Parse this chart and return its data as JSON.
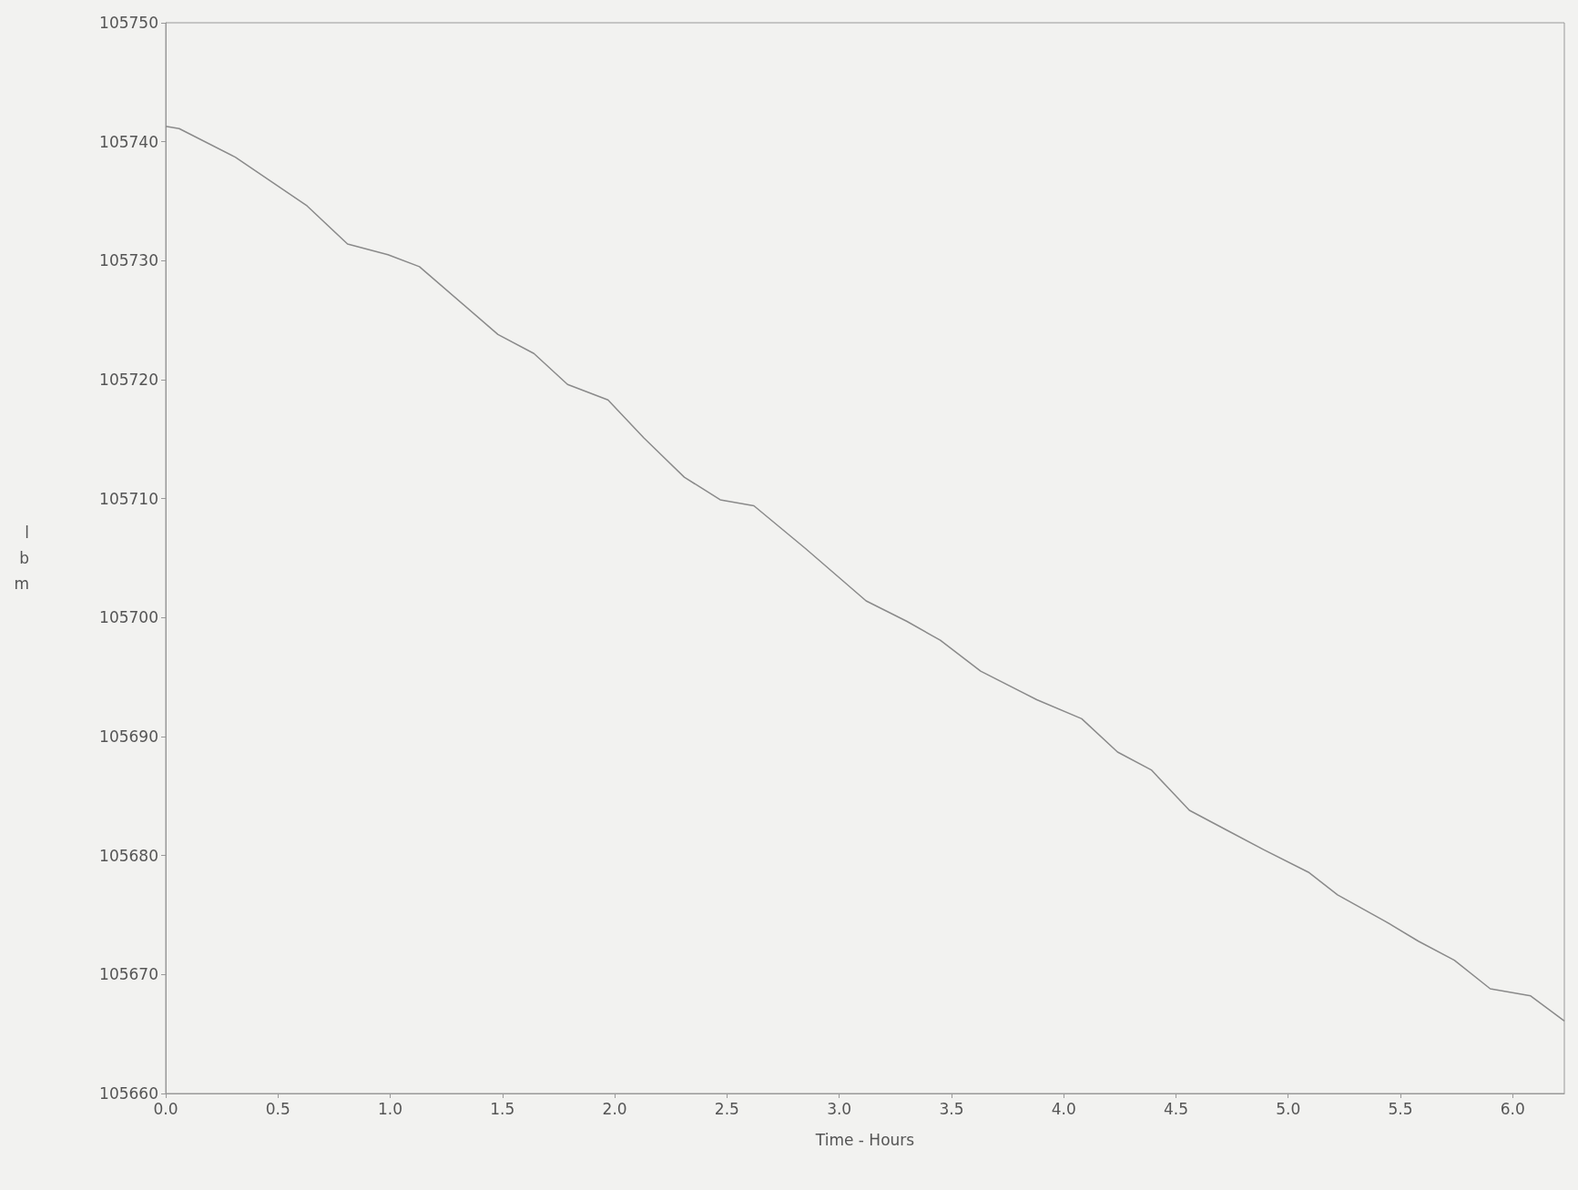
{
  "chart_data": {
    "type": "line",
    "xlabel": "Time - Hours",
    "ylabel": "lbm",
    "x": [
      0,
      0.06,
      0.31,
      0.63,
      0.81,
      0.99,
      1.13,
      1.48,
      1.64,
      1.79,
      1.97,
      2.13,
      2.31,
      2.47,
      2.62,
      2.85,
      3.12,
      3.3,
      3.45,
      3.63,
      3.88,
      4.08,
      4.24,
      4.39,
      4.56,
      4.73,
      4.89,
      5.09,
      5.22,
      5.43,
      5.58,
      5.74,
      5.9,
      6.08,
      6.23
    ],
    "series": [
      {
        "color": "#8a8a8a",
        "values": [
          105741.3,
          105741.1,
          105738.7,
          105734.6,
          105731.4,
          105730.5,
          105729.5,
          105723.8,
          105722.2,
          105719.6,
          105718.3,
          105715.1,
          105711.8,
          105709.9,
          105709.4,
          105705.8,
          105701.4,
          105699.7,
          105698.1,
          105695.5,
          105693.1,
          105691.5,
          105688.7,
          105687.2,
          105683.8,
          105682.1,
          105680.5,
          105678.6,
          105676.7,
          105674.5,
          105672.8,
          105671.2,
          105668.8,
          105668.2,
          105666.1
        ]
      }
    ],
    "xlim": [
      0,
      6.23
    ],
    "xticks": [
      {
        "value": 0,
        "label": "0.0"
      },
      {
        "value": 0.5,
        "label": "0.5"
      },
      {
        "value": 1,
        "label": "1.0"
      },
      {
        "value": 1.5,
        "label": "1.5"
      },
      {
        "value": 2,
        "label": "2.0"
      },
      {
        "value": 2.5,
        "label": "2.5"
      },
      {
        "value": 3,
        "label": "3.0"
      },
      {
        "value": 3.5,
        "label": "3.5"
      },
      {
        "value": 4,
        "label": "4.0"
      },
      {
        "value": 4.5,
        "label": "4.5"
      },
      {
        "value": 5,
        "label": "5.0"
      },
      {
        "value": 5.5,
        "label": "5.5"
      },
      {
        "value": 6,
        "label": "6.0"
      }
    ],
    "ylim": [
      105660,
      105750
    ],
    "yticks": [
      105660,
      105670,
      105680,
      105690,
      105700,
      105710,
      105720,
      105730,
      105740,
      105750
    ],
    "grid": false,
    "marker": "none",
    "line_style": "solid"
  }
}
